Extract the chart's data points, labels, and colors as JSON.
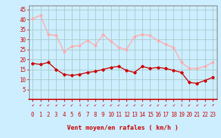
{
  "hours": [
    0,
    1,
    2,
    3,
    4,
    5,
    6,
    7,
    8,
    9,
    10,
    11,
    12,
    13,
    14,
    15,
    16,
    17,
    18,
    19,
    20,
    21,
    22,
    23
  ],
  "wind_avg": [
    18,
    17.5,
    18.5,
    15,
    12.5,
    12,
    12.5,
    13.5,
    14,
    15,
    16,
    16.5,
    14.5,
    13.5,
    16.5,
    15.5,
    16,
    15.5,
    14.5,
    13.5,
    8.5,
    8,
    9.5,
    11
  ],
  "wind_gust": [
    40.5,
    42,
    32.5,
    32,
    24,
    26.5,
    27,
    29.5,
    27,
    32.5,
    29,
    26,
    25,
    31.5,
    32.5,
    32,
    29.5,
    27.5,
    26,
    18.5,
    15.5,
    15.5,
    16.5,
    18.5
  ],
  "avg_color": "#cc0000",
  "gust_color": "#ffaaaa",
  "bg_color": "#cceeff",
  "grid_color": "#aacccc",
  "spine_color": "#888888",
  "axis_color": "#cc0000",
  "xlabel": "Vent moyen/en rafales ( km/h )",
  "xlabel_color": "#cc0000",
  "ylim": [
    0,
    47
  ],
  "yticks": [
    5,
    10,
    15,
    20,
    25,
    30,
    35,
    40,
    45
  ],
  "xticks": [
    0,
    1,
    2,
    3,
    4,
    5,
    6,
    7,
    8,
    9,
    10,
    11,
    12,
    13,
    14,
    15,
    16,
    17,
    18,
    19,
    20,
    21,
    22,
    23
  ],
  "arrow_symbols": [
    "↙",
    "↙",
    "↙",
    "↙",
    "↙",
    "↙",
    "↓",
    "↙",
    "↙",
    "↙",
    "↙",
    "↙",
    "↙",
    "↙",
    "↙",
    "↙",
    "↙",
    "↙",
    "↙",
    "↓",
    "↙",
    "↙",
    "↙",
    "↗"
  ]
}
